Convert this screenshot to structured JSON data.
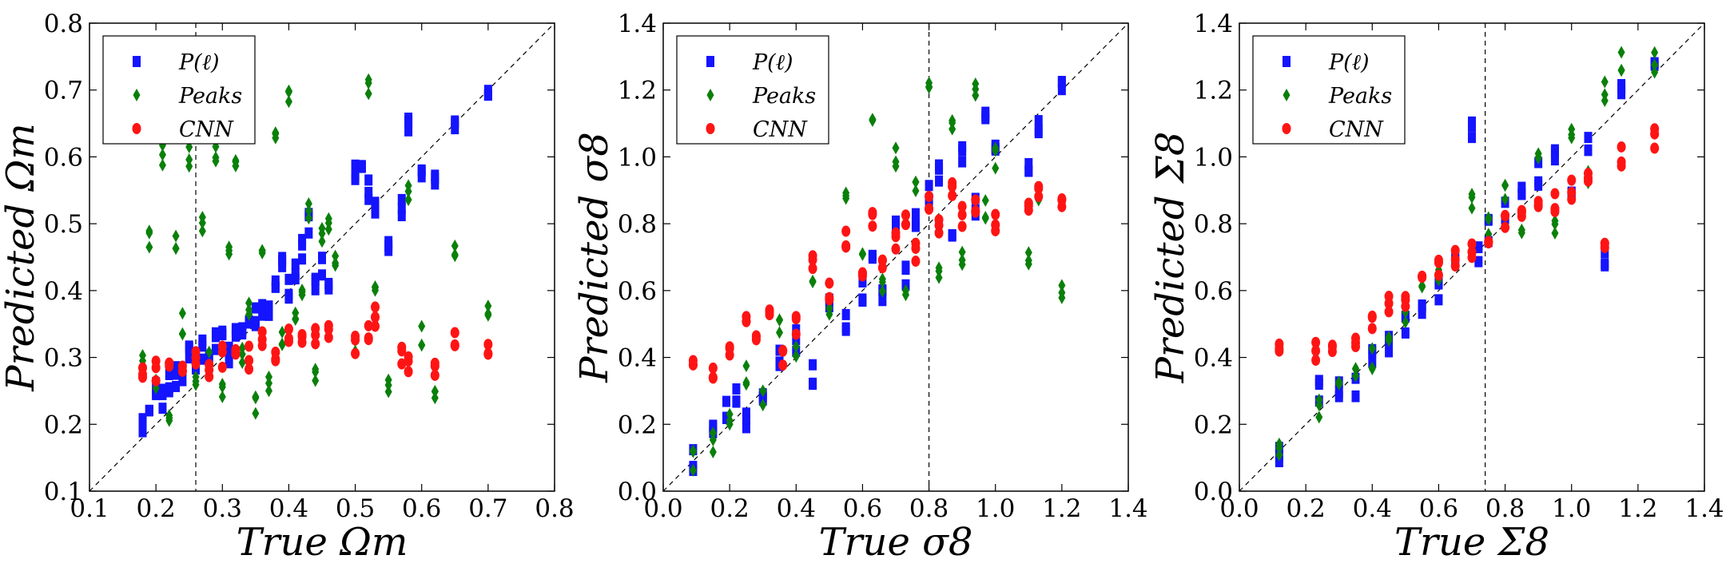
{
  "colors": {
    "pl": "#1414ff",
    "peaks": "#0a800a",
    "cnn": "#ff1414"
  },
  "chart_data": [
    {
      "type": "scatter",
      "xlabel": "True Ωm",
      "ylabel": "Predicted Ωm",
      "xlim": [
        0.1,
        0.8
      ],
      "ylim": [
        0.1,
        0.8
      ],
      "xticks": [
        "0.1",
        "0.2",
        "0.3",
        "0.4",
        "0.5",
        "0.6",
        "0.7",
        "0.8"
      ],
      "yticks": [
        "0.1",
        "0.2",
        "0.3",
        "0.4",
        "0.5",
        "0.6",
        "0.7",
        "0.8"
      ],
      "fiducial_x": 0.26,
      "legend": {
        "position": "top-left",
        "entries": [
          "P(ℓ)",
          "Peaks",
          "CNN"
        ]
      },
      "series": [
        {
          "name": "P(ℓ)",
          "x": [
            0.18,
            0.19,
            0.2,
            0.21,
            0.22,
            0.23,
            0.24,
            0.25,
            0.26,
            0.27,
            0.28,
            0.29,
            0.3,
            0.31,
            0.32,
            0.33,
            0.34,
            0.35,
            0.36,
            0.37,
            0.38,
            0.39,
            0.4,
            0.41,
            0.42,
            0.43,
            0.44,
            0.45,
            0.46,
            0.5,
            0.51,
            0.52,
            0.53,
            0.55,
            0.57,
            0.58,
            0.6,
            0.62,
            0.65,
            0.7
          ],
          "y": [
            0.2,
            0.22,
            0.25,
            0.24,
            0.26,
            0.27,
            0.28,
            0.3,
            0.29,
            0.31,
            0.3,
            0.32,
            0.33,
            0.3,
            0.34,
            0.33,
            0.35,
            0.36,
            0.37,
            0.38,
            0.42,
            0.45,
            0.4,
            0.43,
            0.46,
            0.5,
            0.41,
            0.44,
            0.4,
            0.58,
            0.6,
            0.55,
            0.52,
            0.47,
            0.52,
            0.65,
            0.58,
            0.57,
            0.65,
            0.7
          ]
        },
        {
          "name": "Peaks",
          "x": [
            0.18,
            0.19,
            0.2,
            0.21,
            0.22,
            0.23,
            0.24,
            0.25,
            0.26,
            0.27,
            0.28,
            0.29,
            0.3,
            0.31,
            0.32,
            0.33,
            0.34,
            0.35,
            0.36,
            0.37,
            0.38,
            0.39,
            0.4,
            0.41,
            0.42,
            0.43,
            0.44,
            0.45,
            0.46,
            0.47,
            0.5,
            0.52,
            0.53,
            0.55,
            0.58,
            0.6,
            0.62,
            0.65,
            0.7
          ],
          "y": [
            0.3,
            0.48,
            0.25,
            0.6,
            0.22,
            0.48,
            0.35,
            0.6,
            0.27,
            0.5,
            0.3,
            0.6,
            0.25,
            0.45,
            0.59,
            0.3,
            0.38,
            0.23,
            0.46,
            0.26,
            0.62,
            0.33,
            0.7,
            0.36,
            0.4,
            0.52,
            0.28,
            0.48,
            0.5,
            0.44,
            0.32,
            0.7,
            0.41,
            0.26,
            0.55,
            0.33,
            0.24,
            0.46,
            0.36
          ]
        },
        {
          "name": "CNN",
          "x": [
            0.18,
            0.2,
            0.22,
            0.24,
            0.26,
            0.28,
            0.3,
            0.32,
            0.34,
            0.36,
            0.38,
            0.4,
            0.42,
            0.44,
            0.46,
            0.5,
            0.52,
            0.53,
            0.57,
            0.58,
            0.62,
            0.65,
            0.7
          ],
          "y": [
            0.27,
            0.28,
            0.29,
            0.27,
            0.3,
            0.28,
            0.3,
            0.32,
            0.3,
            0.33,
            0.31,
            0.34,
            0.32,
            0.33,
            0.34,
            0.32,
            0.34,
            0.36,
            0.3,
            0.29,
            0.28,
            0.33,
            0.31
          ]
        }
      ]
    },
    {
      "type": "scatter",
      "xlabel": "True σ8",
      "ylabel": "Predicted σ8",
      "xlim": [
        0.0,
        1.4
      ],
      "ylim": [
        0.0,
        1.4
      ],
      "xticks": [
        "0.0",
        "0.2",
        "0.4",
        "0.6",
        "0.8",
        "1.0",
        "1.2",
        "1.4"
      ],
      "yticks": [
        "0.0",
        "0.2",
        "0.4",
        "0.6",
        "0.8",
        "1.0",
        "1.2",
        "1.4"
      ],
      "fiducial_x": 0.8,
      "legend": {
        "position": "top-left",
        "entries": [
          "P(ℓ)",
          "Peaks",
          "CNN"
        ]
      },
      "series": [
        {
          "name": "P(ℓ)",
          "x": [
            0.09,
            0.15,
            0.19,
            0.22,
            0.25,
            0.3,
            0.35,
            0.4,
            0.45,
            0.5,
            0.55,
            0.6,
            0.63,
            0.66,
            0.7,
            0.73,
            0.76,
            0.8,
            0.83,
            0.87,
            0.9,
            0.94,
            0.97,
            1.0,
            1.1,
            1.13,
            1.2
          ],
          "y": [
            0.09,
            0.2,
            0.25,
            0.3,
            0.22,
            0.3,
            0.4,
            0.45,
            0.35,
            0.55,
            0.5,
            0.6,
            0.7,
            0.6,
            0.78,
            0.65,
            0.8,
            0.9,
            0.95,
            0.75,
            1.0,
            0.85,
            1.1,
            1.05,
            0.95,
            1.1,
            1.2
          ]
        },
        {
          "name": "Peaks",
          "x": [
            0.09,
            0.15,
            0.2,
            0.25,
            0.3,
            0.35,
            0.4,
            0.45,
            0.5,
            0.55,
            0.6,
            0.63,
            0.66,
            0.7,
            0.73,
            0.76,
            0.8,
            0.83,
            0.87,
            0.9,
            0.94,
            0.97,
            1.0,
            1.1,
            1.13,
            1.2
          ],
          "y": [
            0.09,
            0.15,
            0.2,
            0.35,
            0.28,
            0.5,
            0.42,
            0.6,
            0.55,
            0.9,
            0.7,
            1.1,
            0.6,
            1.0,
            0.58,
            0.9,
            1.2,
            0.65,
            1.1,
            0.7,
            1.2,
            0.85,
            1.0,
            0.7,
            0.9,
            0.6
          ]
        },
        {
          "name": "CNN",
          "x": [
            0.09,
            0.15,
            0.2,
            0.25,
            0.28,
            0.32,
            0.36,
            0.4,
            0.45,
            0.5,
            0.55,
            0.6,
            0.63,
            0.66,
            0.7,
            0.73,
            0.76,
            0.8,
            0.83,
            0.87,
            0.9,
            0.94,
            1.0,
            1.1,
            1.13,
            1.2
          ],
          "y": [
            0.37,
            0.37,
            0.4,
            0.5,
            0.46,
            0.55,
            0.4,
            0.5,
            0.7,
            0.6,
            0.75,
            0.65,
            0.8,
            0.7,
            0.75,
            0.8,
            0.72,
            0.85,
            0.78,
            0.9,
            0.82,
            0.85,
            0.8,
            0.85,
            0.9,
            0.88
          ]
        }
      ]
    },
    {
      "type": "scatter",
      "xlabel": "True Σ8",
      "ylabel": "Predicted Σ8",
      "xlim": [
        0.0,
        1.4
      ],
      "ylim": [
        0.0,
        1.4
      ],
      "xticks": [
        "0.0",
        "0.2",
        "0.4",
        "0.6",
        "0.8",
        "1.0",
        "1.2",
        "1.4"
      ],
      "yticks": [
        "0.0",
        "0.2",
        "0.4",
        "0.6",
        "0.8",
        "1.0",
        "1.2",
        "1.4"
      ],
      "fiducial_x": 0.74,
      "legend": {
        "position": "top-left",
        "entries": [
          "P(ℓ)",
          "Peaks",
          "CNN"
        ]
      },
      "series": [
        {
          "name": "P(ℓ)",
          "x": [
            0.12,
            0.24,
            0.3,
            0.35,
            0.4,
            0.45,
            0.5,
            0.55,
            0.6,
            0.65,
            0.7,
            0.72,
            0.75,
            0.8,
            0.85,
            0.9,
            0.95,
            1.0,
            1.05,
            1.1,
            1.15,
            1.25
          ],
          "y": [
            0.12,
            0.3,
            0.3,
            0.31,
            0.4,
            0.45,
            0.5,
            0.55,
            0.6,
            0.68,
            1.08,
            0.72,
            0.78,
            0.85,
            0.88,
            0.95,
            1.0,
            0.9,
            1.05,
            0.7,
            1.2,
            1.25
          ]
        },
        {
          "name": "Peaks",
          "x": [
            0.12,
            0.24,
            0.3,
            0.35,
            0.4,
            0.45,
            0.5,
            0.55,
            0.6,
            0.65,
            0.7,
            0.75,
            0.8,
            0.85,
            0.9,
            0.95,
            1.0,
            1.05,
            1.1,
            1.15,
            1.25
          ],
          "y": [
            0.12,
            0.24,
            0.3,
            0.35,
            0.4,
            0.48,
            0.52,
            0.58,
            0.65,
            0.7,
            0.88,
            0.8,
            0.9,
            0.75,
            0.98,
            0.8,
            1.05,
            0.95,
            1.2,
            1.28,
            1.28
          ]
        },
        {
          "name": "CNN",
          "x": [
            0.12,
            0.23,
            0.28,
            0.35,
            0.4,
            0.45,
            0.5,
            0.55,
            0.6,
            0.65,
            0.7,
            0.75,
            0.8,
            0.85,
            0.9,
            0.95,
            1.0,
            1.05,
            1.1,
            1.15,
            1.25
          ],
          "y": [
            0.41,
            0.42,
            0.42,
            0.46,
            0.5,
            0.55,
            0.58,
            0.62,
            0.66,
            0.7,
            0.73,
            0.76,
            0.79,
            0.82,
            0.84,
            0.86,
            0.9,
            0.95,
            0.75,
            1.0,
            1.05
          ]
        }
      ]
    }
  ]
}
